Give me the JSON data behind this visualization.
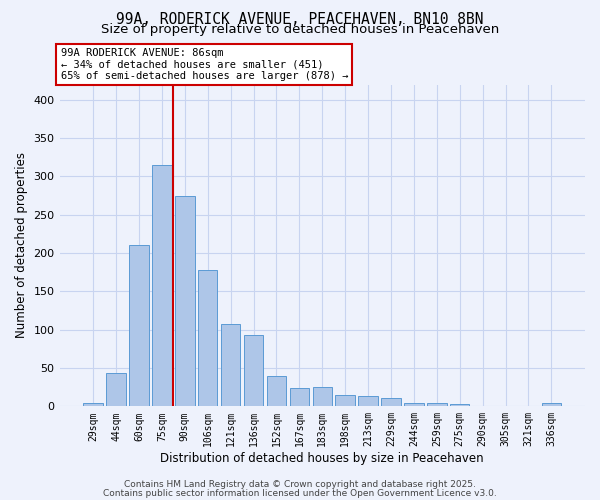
{
  "title1": "99A, RODERICK AVENUE, PEACEHAVEN, BN10 8BN",
  "title2": "Size of property relative to detached houses in Peacehaven",
  "xlabel": "Distribution of detached houses by size in Peacehaven",
  "ylabel": "Number of detached properties",
  "categories": [
    "29sqm",
    "44sqm",
    "60sqm",
    "75sqm",
    "90sqm",
    "106sqm",
    "121sqm",
    "136sqm",
    "152sqm",
    "167sqm",
    "183sqm",
    "198sqm",
    "213sqm",
    "229sqm",
    "244sqm",
    "259sqm",
    "275sqm",
    "290sqm",
    "305sqm",
    "321sqm",
    "336sqm"
  ],
  "values": [
    4,
    44,
    210,
    315,
    275,
    178,
    108,
    93,
    40,
    24,
    25,
    15,
    13,
    11,
    5,
    5,
    3,
    1,
    0,
    0,
    4
  ],
  "bar_color": "#aec6e8",
  "bar_edge_color": "#5b9bd5",
  "bg_color": "#eef2fc",
  "grid_color": "#c8d4f0",
  "vline_x_index": 3.5,
  "vline_color": "#cc0000",
  "annotation_text": "99A RODERICK AVENUE: 86sqm\n← 34% of detached houses are smaller (451)\n65% of semi-detached houses are larger (878) →",
  "annotation_box_color": "#ffffff",
  "annotation_border_color": "#cc0000",
  "footer1": "Contains HM Land Registry data © Crown copyright and database right 2025.",
  "footer2": "Contains public sector information licensed under the Open Government Licence v3.0.",
  "ylim": [
    0,
    420
  ],
  "title1_fontsize": 10.5,
  "title2_fontsize": 9.5,
  "tick_fontsize": 7,
  "ylabel_fontsize": 8.5,
  "xlabel_fontsize": 8.5,
  "footer_fontsize": 6.5
}
